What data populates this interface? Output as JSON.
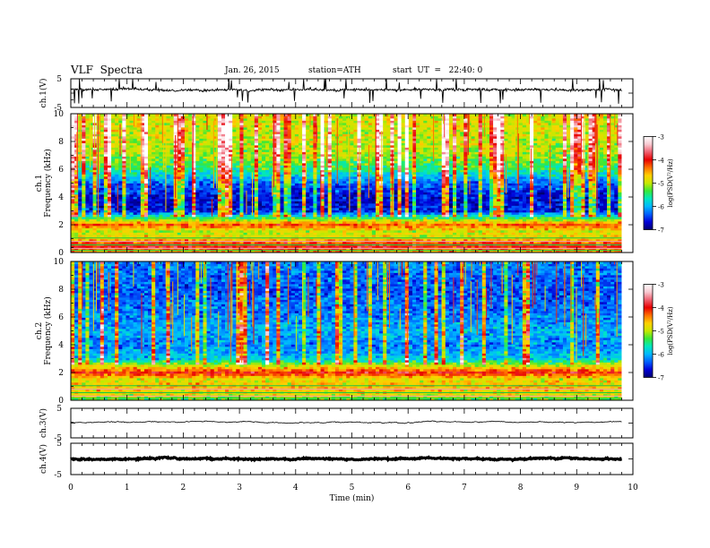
{
  "header": {
    "title": "VLF  Spectra",
    "date": "Jan. 26, 2015",
    "station": "station=ATH",
    "start": "start  UT  =   22:40: 0"
  },
  "xaxis": {
    "label": "Time  (min)",
    "ticks": [
      "0",
      "1",
      "2",
      "3",
      "4",
      "5",
      "6",
      "7",
      "8",
      "9",
      "10"
    ],
    "range": [
      0,
      10
    ],
    "data_end": 9.8
  },
  "colorbar": {
    "label": "log(PSD(V²/Hz)",
    "ticks": [
      "-3",
      "-4",
      "-5",
      "-6",
      "-7"
    ],
    "range": [
      -7,
      -3
    ],
    "stops": [
      "#000070",
      "#0000d8",
      "#0060ff",
      "#00b8ff",
      "#00e8c0",
      "#38e838",
      "#c8e800",
      "#ffd000",
      "#ff7000",
      "#e80000",
      "#f06070",
      "#f8c8d0",
      "#ffffff"
    ]
  },
  "chart_data": [
    {
      "type": "line",
      "name": "ch1-waveform",
      "ylabel": "ch.1(V)",
      "ylim": [
        -5,
        5
      ],
      "yticks": [
        "5",
        "-5"
      ],
      "x_range": [
        0,
        9.8
      ],
      "baseline": 1.2,
      "noise_amplitude": 0.8,
      "spike_count": 40
    },
    {
      "type": "heatmap",
      "name": "ch1-spectrogram",
      "ylabel": "ch.1",
      "ylabel2": "Frequency  (kHz)",
      "ylim": [
        0,
        10
      ],
      "yticks": [
        "0",
        "2",
        "4",
        "6",
        "8",
        "10"
      ],
      "x_range": [
        0,
        9.8
      ],
      "profile": [
        {
          "f": 0.0,
          "v": -4.6
        },
        {
          "f": 0.5,
          "v": -3.9
        },
        {
          "f": 1.0,
          "v": -4.7
        },
        {
          "f": 1.5,
          "v": -5.0
        },
        {
          "f": 2.0,
          "v": -4.2
        },
        {
          "f": 2.5,
          "v": -5.4
        },
        {
          "f": 3.0,
          "v": -6.6
        },
        {
          "f": 4.0,
          "v": -6.7
        },
        {
          "f": 5.0,
          "v": -6.3
        },
        {
          "f": 6.0,
          "v": -5.5
        },
        {
          "f": 7.0,
          "v": -5.1
        },
        {
          "f": 8.0,
          "v": -5.0
        },
        {
          "f": 9.0,
          "v": -4.9
        },
        {
          "f": 10.0,
          "v": -4.9
        }
      ],
      "spike_fraction": 0.35
    },
    {
      "type": "heatmap",
      "name": "ch2-spectrogram",
      "ylabel": "ch.2",
      "ylabel2": "Frequency  (kHz)",
      "ylim": [
        0,
        10
      ],
      "yticks": [
        "0",
        "2",
        "4",
        "6",
        "8",
        "10"
      ],
      "x_range": [
        0,
        9.8
      ],
      "profile": [
        {
          "f": 0.0,
          "v": -5.3
        },
        {
          "f": 0.5,
          "v": -4.8
        },
        {
          "f": 1.0,
          "v": -4.6
        },
        {
          "f": 1.5,
          "v": -4.9
        },
        {
          "f": 2.0,
          "v": -4.0
        },
        {
          "f": 2.5,
          "v": -4.9
        },
        {
          "f": 3.0,
          "v": -5.9
        },
        {
          "f": 4.0,
          "v": -6.2
        },
        {
          "f": 5.0,
          "v": -6.0
        },
        {
          "f": 6.0,
          "v": -6.2
        },
        {
          "f": 7.0,
          "v": -6.3
        },
        {
          "f": 8.0,
          "v": -6.4
        },
        {
          "f": 9.0,
          "v": -6.3
        },
        {
          "f": 10.0,
          "v": -6.2
        }
      ],
      "spike_fraction": 0.18
    },
    {
      "type": "line",
      "name": "ch3-waveform",
      "ylabel": "ch.3(V)",
      "ylim": [
        -5,
        5
      ],
      "yticks": [
        "5",
        "-5"
      ],
      "x_range": [
        0,
        9.8
      ],
      "baseline": 0.3,
      "noise_amplitude": 0.15,
      "spike_count": 0
    },
    {
      "type": "line",
      "name": "ch4-waveform",
      "ylabel": "ch.4(V)",
      "ylim": [
        -5,
        5
      ],
      "yticks": [
        "5",
        "-5"
      ],
      "x_range": [
        0,
        9.8
      ],
      "baseline": 0.0,
      "noise_amplitude": 0.3,
      "spike_count": 0
    }
  ]
}
